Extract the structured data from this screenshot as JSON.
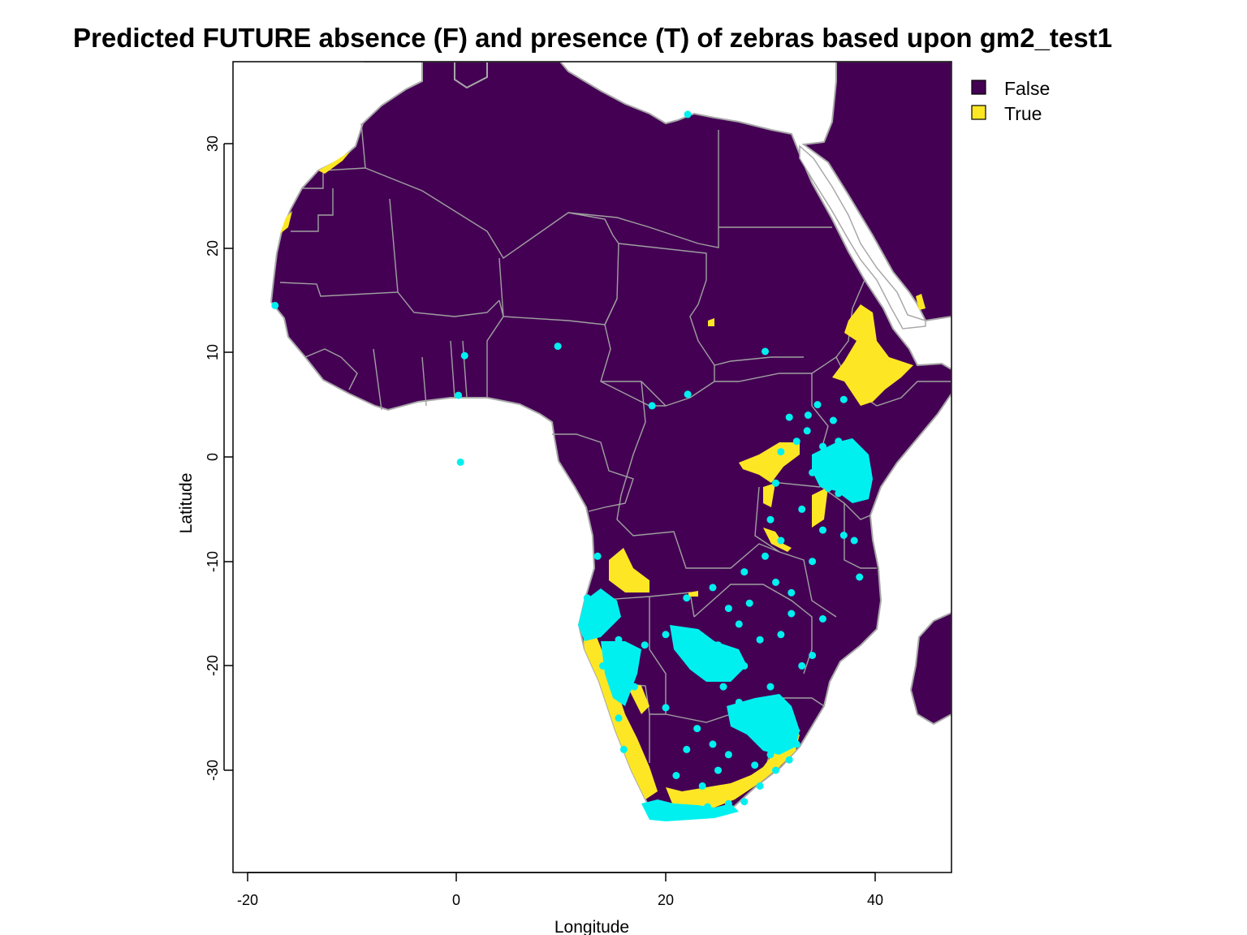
{
  "title": "Predicted FUTURE absence (F) and presence (T) of zebras based upon gm2_test1",
  "x_axis": {
    "label": "Longitude",
    "ticks": [
      "-20",
      "0",
      "20",
      "40"
    ]
  },
  "y_axis": {
    "label": "Latitude",
    "ticks": [
      "30",
      "20",
      "10",
      "0",
      "-10",
      "-20",
      "-30"
    ]
  },
  "legend": {
    "placement": "top-right",
    "items": [
      {
        "label": "False",
        "color": "#440154"
      },
      {
        "label": "True",
        "color": "#FDE725"
      }
    ]
  },
  "colors": {
    "absence": "#440154",
    "presence": "#FDE725",
    "occurrence_points": "#00F0F0",
    "borders": "#A0A0A0"
  },
  "chart_data": {
    "type": "map",
    "xlim": [
      -21.5,
      47
    ],
    "ylim": [
      -39.5,
      38
    ],
    "presence_regions": [
      {
        "region": "Morocco/Western Sahara coast",
        "lon": -14,
        "lat": 27
      },
      {
        "region": "Ethiopian highlands",
        "lon": 39,
        "lat": 9
      },
      {
        "region": "Lake Victoria basin",
        "lon": 32,
        "lat": 0
      },
      {
        "region": "Angola plateau",
        "lon": 16,
        "lat": -12
      },
      {
        "region": "Namibia coast",
        "lon": 14,
        "lat": -23
      },
      {
        "region": "South Africa east/south",
        "lon": 27,
        "lat": -32
      }
    ],
    "occurrence_points": [
      [
        -17.3,
        14.5
      ],
      [
        0.8,
        9.7
      ],
      [
        0.2,
        5.9
      ],
      [
        9.7,
        10.6
      ],
      [
        0.4,
        -0.5
      ],
      [
        22.1,
        32.8
      ],
      [
        29.5,
        10.1
      ],
      [
        22.1,
        6.0
      ],
      [
        18.7,
        4.9
      ],
      [
        31.8,
        3.8
      ],
      [
        33.6,
        4.0
      ],
      [
        36.0,
        3.5
      ],
      [
        37.0,
        5.5
      ],
      [
        35.0,
        1.0
      ],
      [
        36.0,
        0.0
      ],
      [
        37.0,
        -1.0
      ],
      [
        38.0,
        -2.0
      ],
      [
        35.5,
        -3.0
      ],
      [
        34.0,
        -1.5
      ],
      [
        36.5,
        1.5
      ],
      [
        33.0,
        -5.0
      ],
      [
        35.0,
        -7.0
      ],
      [
        37.0,
        -7.5
      ],
      [
        38.0,
        -8.0
      ],
      [
        30.0,
        -6.0
      ],
      [
        31.0,
        -8.0
      ],
      [
        34.0,
        -10.0
      ],
      [
        30.5,
        -12.0
      ],
      [
        32.0,
        -15.0
      ],
      [
        35.0,
        -15.5
      ],
      [
        13.5,
        -9.5
      ],
      [
        12.5,
        -13.5
      ],
      [
        12.5,
        -17.0
      ],
      [
        14.5,
        -15.0
      ],
      [
        15.5,
        -17.5
      ],
      [
        14.0,
        -20.0
      ],
      [
        16.0,
        -19.5
      ],
      [
        17.0,
        -22.0
      ],
      [
        15.5,
        -25.0
      ],
      [
        16.0,
        -28.0
      ],
      [
        18.0,
        -18.0
      ],
      [
        20.0,
        -17.0
      ],
      [
        21.5,
        -18.5
      ],
      [
        23.0,
        -19.0
      ],
      [
        24.0,
        -20.5
      ],
      [
        25.0,
        -18.0
      ],
      [
        26.5,
        -19.0
      ],
      [
        27.5,
        -20.0
      ],
      [
        25.5,
        -22.0
      ],
      [
        27.0,
        -23.5
      ],
      [
        28.5,
        -25.0
      ],
      [
        30.0,
        -25.5
      ],
      [
        31.0,
        -24.0
      ],
      [
        31.5,
        -26.5
      ],
      [
        32.5,
        -27.5
      ],
      [
        30.0,
        -28.5
      ],
      [
        28.5,
        -29.5
      ],
      [
        26.0,
        -28.5
      ],
      [
        24.5,
        -27.5
      ],
      [
        23.0,
        -26.0
      ],
      [
        22.0,
        -28.0
      ],
      [
        20.0,
        -24.0
      ],
      [
        21.0,
        -30.5
      ],
      [
        19.0,
        -33.5
      ],
      [
        18.5,
        -34.0
      ],
      [
        20.0,
        -34.2
      ],
      [
        22.0,
        -33.8
      ],
      [
        24.0,
        -33.5
      ],
      [
        26.0,
        -33.2
      ],
      [
        27.5,
        -33.0
      ],
      [
        29.0,
        -31.5
      ],
      [
        30.5,
        -30.0
      ],
      [
        31.8,
        -29.0
      ],
      [
        23.5,
        -31.5
      ],
      [
        25.0,
        -30.0
      ],
      [
        33.0,
        -20.0
      ],
      [
        34.0,
        -19.0
      ],
      [
        30.0,
        -22.0
      ],
      [
        29.0,
        -17.5
      ],
      [
        31.0,
        -17.0
      ],
      [
        27.0,
        -16.0
      ],
      [
        26.0,
        -14.5
      ],
      [
        22.0,
        -13.5
      ],
      [
        24.5,
        -12.5
      ],
      [
        28.0,
        -14.0
      ],
      [
        32.0,
        -13.0
      ],
      [
        29.5,
        -9.5
      ],
      [
        27.5,
        -11.0
      ],
      [
        38.5,
        -11.5
      ],
      [
        34.5,
        5.0
      ],
      [
        32.5,
        1.5
      ],
      [
        31.0,
        0.5
      ],
      [
        30.5,
        -2.5
      ],
      [
        33.5,
        2.5
      ],
      [
        36.5,
        -3.5
      ]
    ]
  }
}
